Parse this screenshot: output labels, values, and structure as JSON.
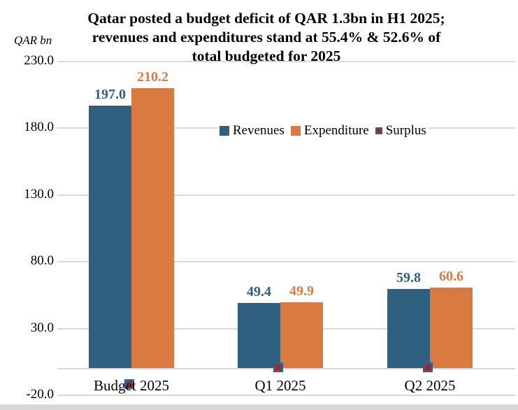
{
  "chart_data": {
    "type": "bar",
    "title": "Qatar posted a budget deficit of QAR 1.3bn in H1 2025; revenues and expenditures stand at 55.4% & 52.6% of total budgeted for 2025",
    "title_lines": [
      "Qatar posted a budget deficit of QAR 1.3bn in H1 2025;",
      "revenues and expenditures stand at 55.4% & 52.6% of",
      "total budgeted for 2025"
    ],
    "ylabel": "QAR bn",
    "categories": [
      "Budget 2025",
      "Q1 2025",
      "Q2 2025"
    ],
    "series": [
      {
        "name": "Revenues",
        "type": "bar",
        "values": [
          197.0,
          49.4,
          59.8
        ],
        "labels": [
          "197.0",
          "49.4",
          "59.8"
        ],
        "color": "#2F607F"
      },
      {
        "name": "Expenditure",
        "type": "bar",
        "values": [
          210.2,
          49.9,
          60.6
        ],
        "labels": [
          "210.2",
          "49.9",
          "60.6"
        ],
        "color": "#D97B41"
      },
      {
        "name": "Surplus",
        "type": "square-marker",
        "values": [
          -13.2,
          -0.5,
          -0.8
        ],
        "labels": [],
        "color": "#AD241B",
        "marker_border_color": "#336189"
      }
    ],
    "yticks": [
      230.0,
      180.0,
      130.0,
      80.0,
      30.0,
      -20.0
    ],
    "ytick_labels": [
      "230.0",
      "180.0",
      "130.0",
      "80.0",
      "30.0",
      "-20.0"
    ],
    "ylim": [
      -20,
      230
    ],
    "grid": true,
    "gridline_color": "#D9D9D9",
    "legend": {
      "position": "inside-top-center",
      "entries": [
        "Revenues",
        "Expenditure",
        "Surplus"
      ]
    }
  }
}
